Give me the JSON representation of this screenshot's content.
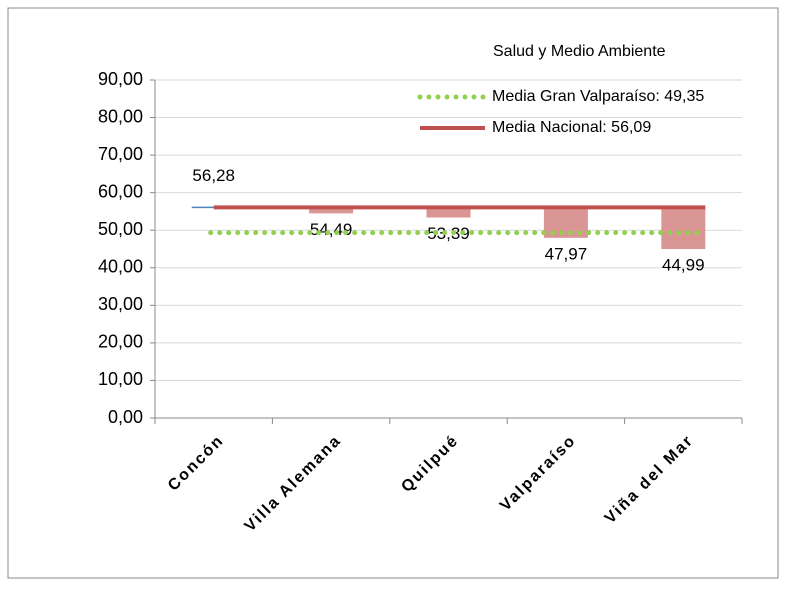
{
  "chart_data": {
    "type": "bar",
    "legend_title": "Salud y Medio Ambiente",
    "categories": [
      "Concón",
      "Villa Alemana",
      "Quilpué",
      "Valparaíso",
      "Viña del Mar"
    ],
    "values": [
      56.28,
      54.49,
      53.39,
      47.97,
      44.99
    ],
    "value_labels": [
      "56,28",
      "54,49",
      "53,39",
      "47,97",
      "44,99"
    ],
    "colors": [
      "#4f81bd",
      "#d99694",
      "#d99694",
      "#d99694",
      "#d99694"
    ],
    "reference_lines": [
      {
        "name": "Media Gran Valparaíso: 49,35",
        "value": 49.35,
        "color": "#92d050",
        "style": "dotted"
      },
      {
        "name": "Media Nacional: 56,09",
        "value": 56.09,
        "color": "#c0504d",
        "style": "solid"
      }
    ],
    "ylim": [
      0,
      90
    ],
    "yticks": [
      {
        "value": 0,
        "label": "0,00"
      },
      {
        "value": 10,
        "label": "10,00"
      },
      {
        "value": 20,
        "label": "20,00"
      },
      {
        "value": 30,
        "label": "30,00"
      },
      {
        "value": 40,
        "label": "40,00"
      },
      {
        "value": 50,
        "label": "50,00"
      },
      {
        "value": 60,
        "label": "60,00"
      },
      {
        "value": 70,
        "label": "70,00"
      },
      {
        "value": 80,
        "label": "80,00"
      },
      {
        "value": 90,
        "label": "90,00"
      }
    ],
    "grid": true
  }
}
